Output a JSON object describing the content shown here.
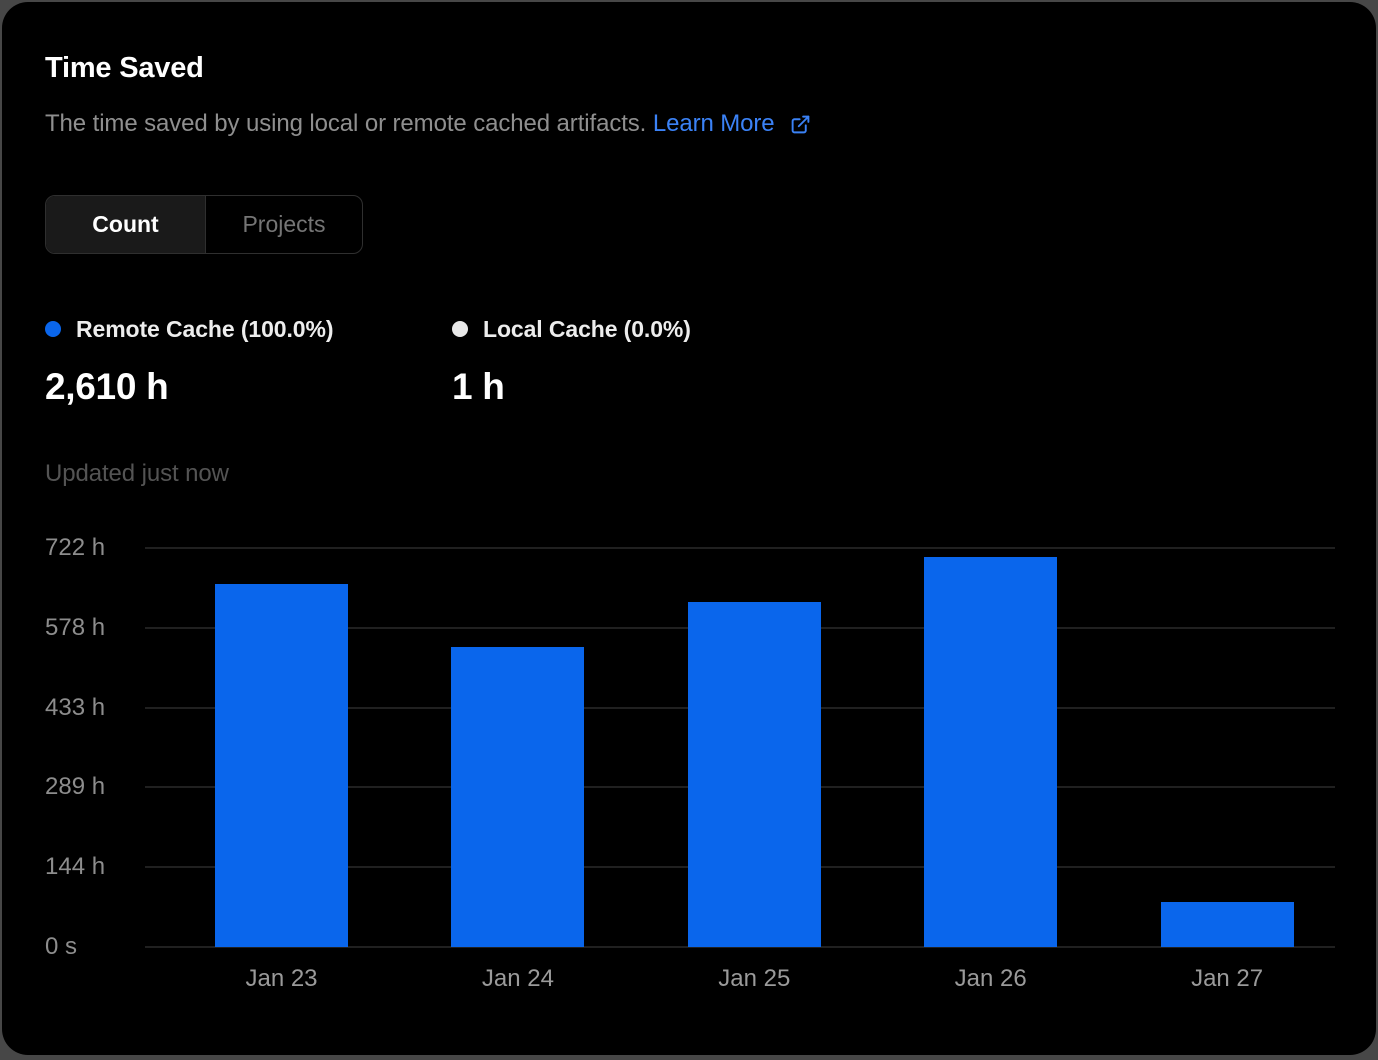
{
  "card": {
    "title": "Time Saved",
    "subtitle": "The time saved by using local or remote cached artifacts.",
    "learn_more": "Learn More",
    "updated": "Updated just now"
  },
  "toggle": {
    "count_label": "Count",
    "projects_label": "Projects",
    "selected": "Count"
  },
  "legend": {
    "remote": {
      "label": "Remote Cache (100.0%)",
      "value": "2,610 h",
      "color": "#0a66ec"
    },
    "local": {
      "label": "Local Cache (0.0%)",
      "value": "1 h",
      "color": "#e8e8e8"
    }
  },
  "colors": {
    "background": "#000000",
    "frame": "#474747",
    "link": "#3b82f6",
    "bar": "#0a66ec",
    "gridline": "#202020"
  },
  "chart_data": {
    "type": "bar",
    "title": "Time Saved",
    "categories": [
      "Jan 23",
      "Jan 24",
      "Jan 25",
      "Jan 26",
      "Jan 27"
    ],
    "series": [
      {
        "name": "Remote Cache",
        "unit": "h",
        "color": "#0a66ec",
        "values": [
          657,
          543,
          624,
          706,
          81
        ]
      },
      {
        "name": "Local Cache",
        "unit": "h",
        "color": "#e8e8e8",
        "values": [
          0,
          0,
          0,
          0,
          0
        ]
      }
    ],
    "y_ticks": [
      {
        "value": 722,
        "label": "722 h"
      },
      {
        "value": 578,
        "label": "578 h"
      },
      {
        "value": 433,
        "label": "433 h"
      },
      {
        "value": 289,
        "label": "289 h"
      },
      {
        "value": 144,
        "label": "144 h"
      },
      {
        "value": 0,
        "label": "0 s"
      }
    ],
    "ylim": [
      0,
      722
    ],
    "grid": true,
    "legend_position": "top-left"
  }
}
